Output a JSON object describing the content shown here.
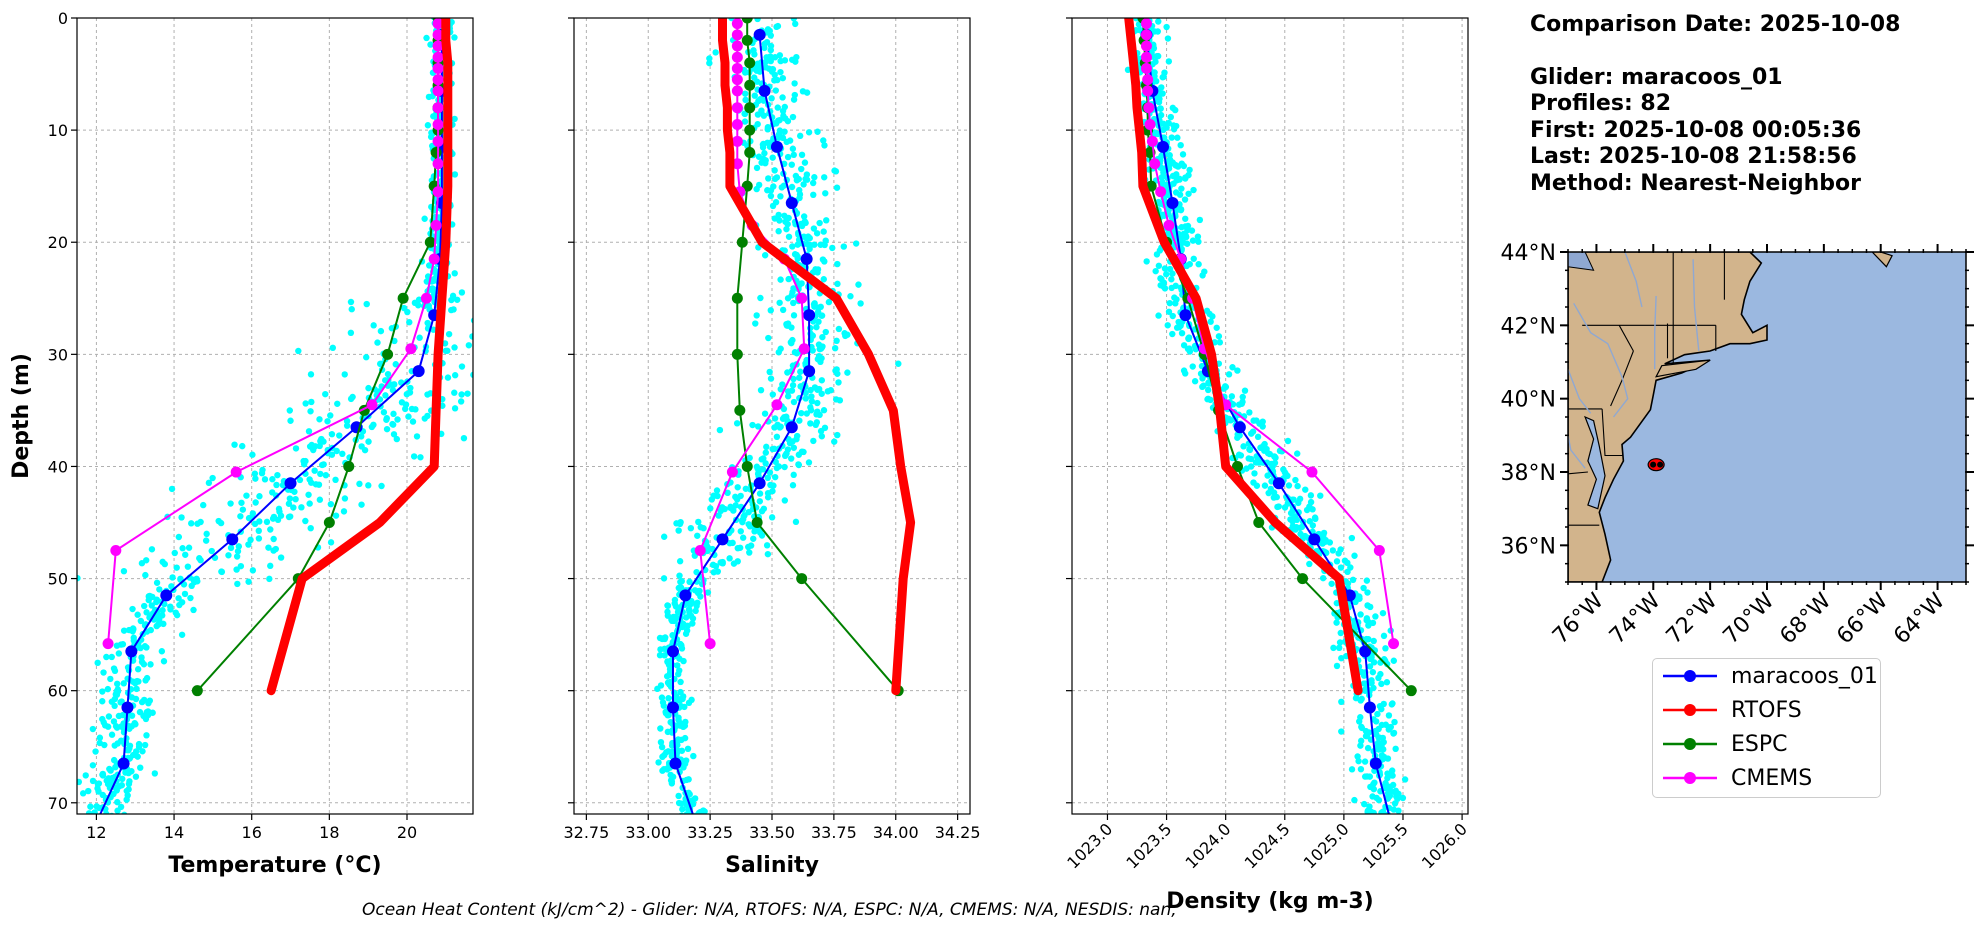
{
  "info": {
    "date_line": "Comparison Date: 2025-10-08",
    "glider_line": "Glider: maracoos_01",
    "profiles_line": "Profiles: 82",
    "first_line": "First: 2025-10-08 00:05:36",
    "last_line": "Last: 2025-10-08 21:58:56",
    "method_line": "Method: Nearest-Neighbor"
  },
  "footer": "Ocean Heat Content (kJ/cm^2) - Glider: N/A,  RTOFS: N/A,  ESPC: N/A,  CMEMS: N/A,  NESDIS: nan,",
  "colors": {
    "glider": "#0000ff",
    "rtofs": "#ff0000",
    "espc": "#008000",
    "cmems": "#ff00ff",
    "scatter": "#00ffff",
    "land": "#d2b48c",
    "ocean": "#9bb8e0"
  },
  "legend": [
    {
      "key": "glider",
      "label": "maracoos_01"
    },
    {
      "key": "rtofs",
      "label": "RTOFS"
    },
    {
      "key": "espc",
      "label": "ESPC"
    },
    {
      "key": "cmems",
      "label": "CMEMS"
    }
  ],
  "chart_data": [
    {
      "type": "line",
      "id": "temperature",
      "xlabel": "Temperature (°C)",
      "ylabel": "Depth (m)",
      "xlim": [
        11.5,
        21.7
      ],
      "ylim": [
        71,
        0
      ],
      "xticks": [
        "12",
        "14",
        "16",
        "18",
        "20"
      ],
      "xtick_values": [
        12,
        14,
        16,
        18,
        20
      ],
      "yticks": [
        "0",
        "10",
        "20",
        "30",
        "40",
        "50",
        "60",
        "70"
      ],
      "grid": true,
      "series": [
        {
          "key": "glider",
          "depth": [
            1.5,
            6.5,
            11.5,
            16.5,
            21.5,
            26.5,
            31.5,
            36.5,
            41.5,
            46.5,
            51.5,
            56.5,
            61.5,
            66.5,
            71
          ],
          "values": [
            20.9,
            20.9,
            20.9,
            20.9,
            20.85,
            20.7,
            20.3,
            18.7,
            17.0,
            15.5,
            13.8,
            12.9,
            12.8,
            12.7,
            12.1
          ]
        },
        {
          "key": "rtofs",
          "depth": [
            0,
            2,
            4,
            6,
            8,
            10,
            12,
            15,
            20,
            25,
            30,
            35,
            40,
            45,
            50,
            60
          ],
          "values": [
            21.0,
            21.0,
            21.05,
            21.05,
            21.05,
            21.05,
            21.05,
            21.05,
            21.0,
            20.9,
            20.8,
            20.75,
            20.7,
            19.3,
            17.3,
            16.5
          ]
        },
        {
          "key": "espc",
          "depth": [
            0,
            2,
            4,
            6,
            8,
            10,
            12,
            15,
            20,
            25,
            30,
            35,
            40,
            45,
            50,
            60
          ],
          "values": [
            20.8,
            20.8,
            20.8,
            20.8,
            20.8,
            20.8,
            20.75,
            20.7,
            20.6,
            19.9,
            19.5,
            18.9,
            18.5,
            18.0,
            17.2,
            14.6
          ]
        },
        {
          "key": "cmems",
          "depth": [
            0.5,
            1.5,
            2.5,
            3.5,
            4.5,
            5.5,
            6.5,
            8,
            9.5,
            11,
            13,
            15.5,
            18.5,
            21.5,
            25,
            29.5,
            34.5,
            40.5,
            47.5,
            55.8
          ],
          "values": [
            20.8,
            20.8,
            20.8,
            20.8,
            20.8,
            20.8,
            20.8,
            20.8,
            20.8,
            20.8,
            20.8,
            20.8,
            20.75,
            20.7,
            20.5,
            20.1,
            19.1,
            15.6,
            12.5,
            12.3
          ]
        }
      ]
    },
    {
      "type": "line",
      "id": "salinity",
      "xlabel": "Salinity",
      "ylabel": "",
      "xlim": [
        32.7,
        34.3
      ],
      "ylim": [
        71,
        0
      ],
      "xticks": [
        "32.75",
        "33.00",
        "33.25",
        "33.50",
        "33.75",
        "34.00",
        "34.25"
      ],
      "xtick_values": [
        32.75,
        33.0,
        33.25,
        33.5,
        33.75,
        34.0,
        34.25
      ],
      "yticks": [
        "",
        "",
        "",
        "",
        "",
        "",
        "",
        ""
      ],
      "grid": true,
      "series": [
        {
          "key": "glider",
          "depth": [
            1.5,
            6.5,
            11.5,
            16.5,
            21.5,
            26.5,
            31.5,
            36.5,
            41.5,
            46.5,
            51.5,
            56.5,
            61.5,
            66.5,
            71
          ],
          "values": [
            33.45,
            33.47,
            33.52,
            33.58,
            33.64,
            33.65,
            33.65,
            33.58,
            33.45,
            33.3,
            33.15,
            33.1,
            33.1,
            33.11,
            33.18
          ]
        },
        {
          "key": "rtofs",
          "depth": [
            0,
            2,
            4,
            6,
            8,
            10,
            12,
            15,
            20,
            25,
            30,
            35,
            40,
            45,
            50,
            60
          ],
          "values": [
            33.3,
            33.3,
            33.31,
            33.31,
            33.32,
            33.32,
            33.33,
            33.33,
            33.46,
            33.76,
            33.89,
            33.99,
            34.02,
            34.06,
            34.03,
            34.0
          ]
        },
        {
          "key": "espc",
          "depth": [
            0,
            2,
            4,
            6,
            8,
            10,
            12,
            15,
            20,
            25,
            30,
            35,
            40,
            45,
            50,
            60
          ],
          "values": [
            33.4,
            33.4,
            33.41,
            33.41,
            33.41,
            33.41,
            33.41,
            33.4,
            33.38,
            33.36,
            33.36,
            33.37,
            33.4,
            33.44,
            33.62,
            34.01
          ]
        },
        {
          "key": "cmems",
          "depth": [
            0.5,
            1.5,
            2.5,
            3.5,
            4.5,
            5.5,
            6.5,
            8,
            9.5,
            11,
            13,
            15.5,
            18.5,
            21.5,
            25,
            29.5,
            34.5,
            40.5,
            47.5,
            55.8
          ],
          "values": [
            33.36,
            33.36,
            33.36,
            33.36,
            33.36,
            33.36,
            33.36,
            33.36,
            33.36,
            33.36,
            33.36,
            33.37,
            33.42,
            33.55,
            33.62,
            33.63,
            33.52,
            33.34,
            33.21,
            33.25
          ]
        }
      ]
    },
    {
      "type": "line",
      "id": "density",
      "xlabel": "Density (kg m-3)",
      "ylabel": "",
      "xlim": [
        1022.7,
        1026.05
      ],
      "ylim": [
        71,
        0
      ],
      "xticks": [
        "1023.0",
        "1023.5",
        "1024.0",
        "1024.5",
        "1025.0",
        "1025.5",
        "1026.0"
      ],
      "xtick_values": [
        1023.0,
        1023.5,
        1024.0,
        1024.5,
        1025.0,
        1025.5,
        1026.0
      ],
      "yticks": [
        "",
        "",
        "",
        "",
        "",
        "",
        "",
        ""
      ],
      "grid": true,
      "series": [
        {
          "key": "glider",
          "depth": [
            1.5,
            6.5,
            11.5,
            16.5,
            21.5,
            26.5,
            31.5,
            36.5,
            41.5,
            46.5,
            51.5,
            56.5,
            61.5,
            66.5,
            71
          ],
          "values": [
            1023.33,
            1023.38,
            1023.47,
            1023.55,
            1023.62,
            1023.66,
            1023.85,
            1024.12,
            1024.45,
            1024.75,
            1025.05,
            1025.18,
            1025.22,
            1025.27,
            1025.38
          ]
        },
        {
          "key": "rtofs",
          "depth": [
            0,
            2,
            4,
            6,
            8,
            10,
            12,
            15,
            20,
            25,
            30,
            35,
            40,
            45,
            50,
            60
          ],
          "values": [
            1023.18,
            1023.2,
            1023.22,
            1023.24,
            1023.25,
            1023.27,
            1023.29,
            1023.3,
            1023.48,
            1023.75,
            1023.88,
            1023.95,
            1024.0,
            1024.42,
            1024.96,
            1025.12
          ]
        },
        {
          "key": "espc",
          "depth": [
            0,
            2,
            4,
            6,
            8,
            10,
            12,
            15,
            20,
            25,
            30,
            35,
            40,
            45,
            50,
            60
          ],
          "values": [
            1023.3,
            1023.31,
            1023.32,
            1023.33,
            1023.34,
            1023.34,
            1023.36,
            1023.37,
            1023.5,
            1023.68,
            1023.82,
            1023.94,
            1024.1,
            1024.28,
            1024.65,
            1025.57
          ]
        },
        {
          "key": "cmems",
          "depth": [
            0.5,
            1.5,
            2.5,
            3.5,
            4.5,
            5.5,
            6.5,
            8,
            9.5,
            11,
            13,
            15.5,
            18.5,
            21.5,
            25,
            29.5,
            34.5,
            40.5,
            47.5,
            55.8
          ],
          "values": [
            1023.33,
            1023.33,
            1023.33,
            1023.33,
            1023.33,
            1023.34,
            1023.34,
            1023.35,
            1023.36,
            1023.38,
            1023.4,
            1023.45,
            1023.52,
            1023.62,
            1023.72,
            1023.82,
            1024.0,
            1024.73,
            1025.3,
            1025.42
          ]
        }
      ]
    },
    {
      "type": "map",
      "id": "location-map",
      "lon_range": [
        -77,
        -63
      ],
      "lat_range": [
        35,
        44
      ],
      "xticks": [
        "76°W",
        "74°W",
        "72°W",
        "70°W",
        "68°W",
        "66°W",
        "64°W"
      ],
      "xtick_values": [
        -76,
        -74,
        -72,
        -70,
        -68,
        -66,
        -64
      ],
      "yticks": [
        "36°N",
        "38°N",
        "40°N",
        "42°N",
        "44°N"
      ],
      "ytick_values": [
        36,
        38,
        40,
        42,
        44
      ],
      "glider_location": {
        "lon": -73.9,
        "lat": 38.2
      }
    }
  ]
}
